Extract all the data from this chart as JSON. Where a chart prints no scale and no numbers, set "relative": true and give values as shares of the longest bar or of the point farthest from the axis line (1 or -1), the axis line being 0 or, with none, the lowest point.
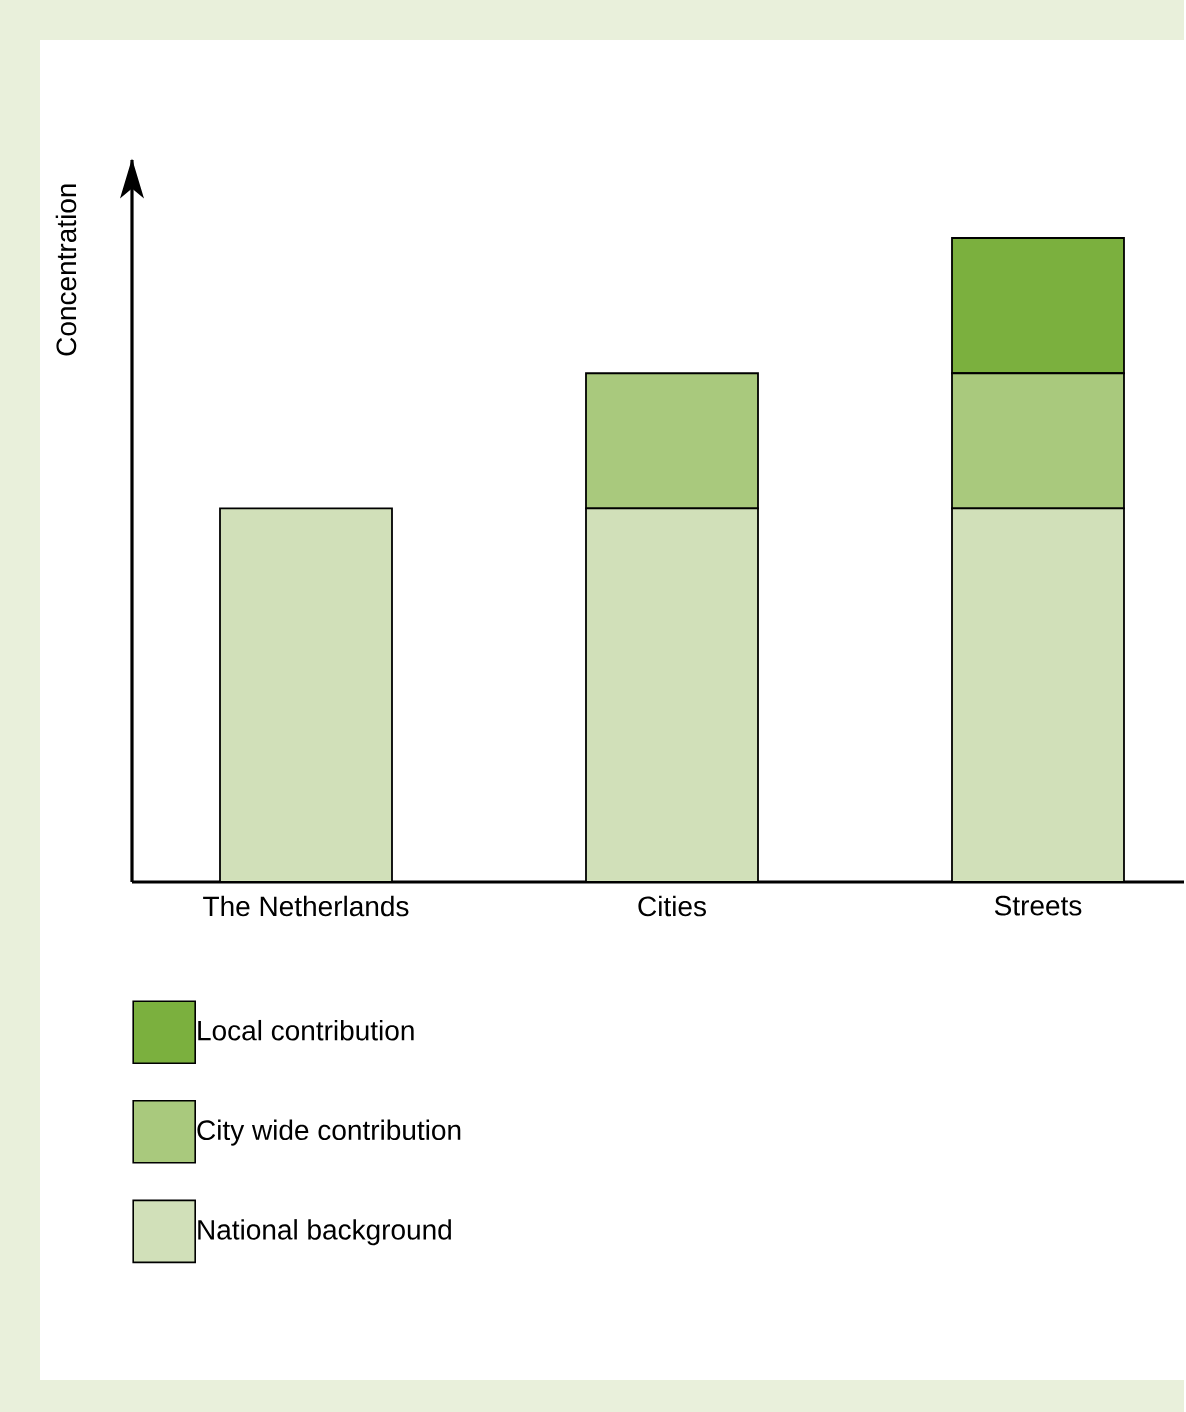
{
  "chart_data": {
    "type": "bar",
    "stacked": true,
    "relative": true,
    "ylabel": "Concentration",
    "categories": [
      "The Netherlands",
      "Cities",
      "Streets"
    ],
    "series": [
      {
        "name": "National background",
        "color": "#d1e0b9",
        "values": [
          0.58,
          0.58,
          0.58
        ]
      },
      {
        "name": "City wide contribution",
        "color": "#a9c97d",
        "values": [
          null,
          0.21,
          0.21
        ]
      },
      {
        "name": "Local contribution",
        "color": "#7bb03e",
        "values": [
          null,
          null,
          0.21
        ]
      }
    ],
    "legend": "bottom"
  }
}
